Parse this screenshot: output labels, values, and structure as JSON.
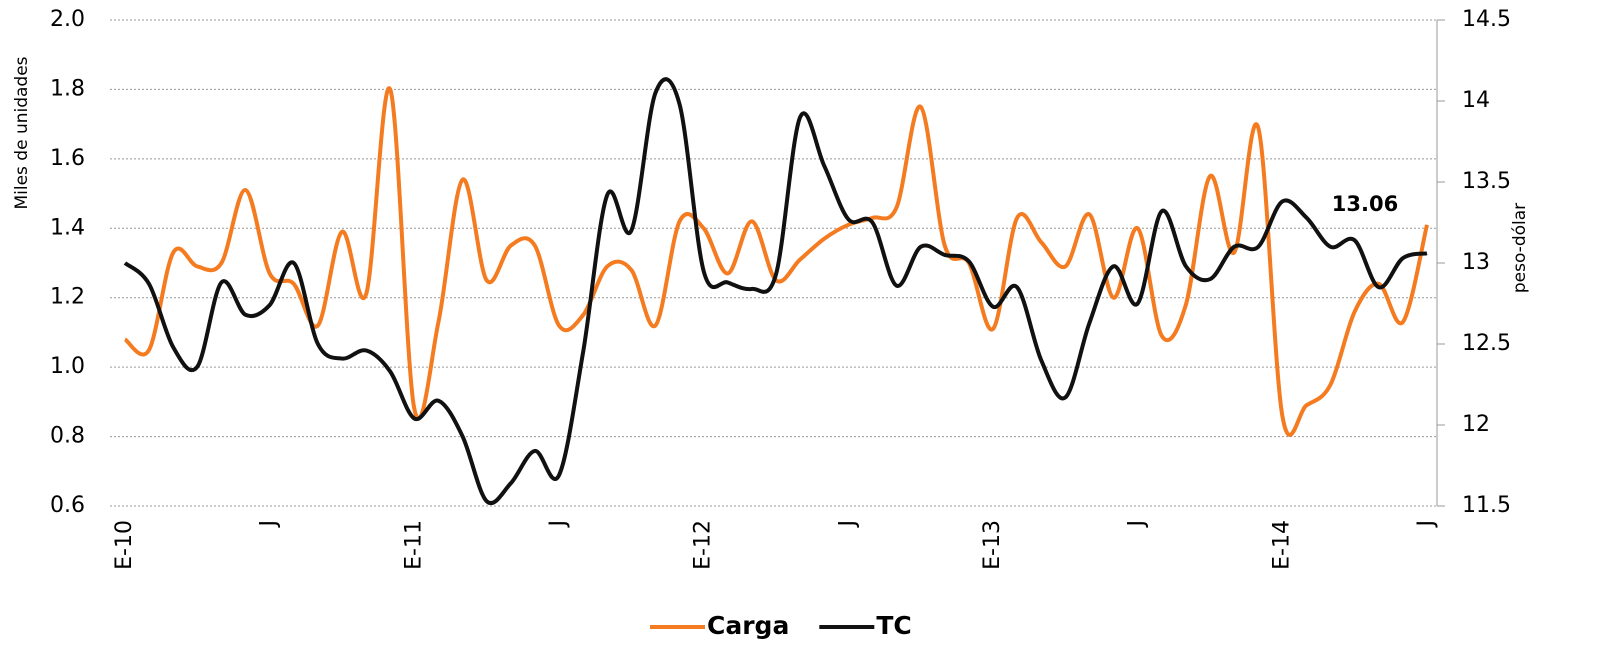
{
  "chart_data": {
    "type": "line",
    "y_label": "Miles de unidades",
    "y2_label": "peso-dólar",
    "categories": [
      "E-10",
      null,
      null,
      null,
      null,
      null,
      "J",
      null,
      null,
      null,
      null,
      null,
      "E-11",
      null,
      null,
      null,
      null,
      null,
      "J",
      null,
      null,
      null,
      null,
      null,
      "E-12",
      null,
      null,
      null,
      null,
      null,
      "J",
      null,
      null,
      null,
      null,
      null,
      "E-13",
      null,
      null,
      null,
      null,
      null,
      "J",
      null,
      null,
      null,
      null,
      null,
      "E-14",
      null,
      null,
      null,
      null,
      null,
      "J"
    ],
    "series": [
      {
        "name": "Carga",
        "color": "#f47b20",
        "values": [
          1.08,
          1.05,
          1.33,
          1.29,
          1.3,
          1.51,
          1.27,
          1.24,
          1.12,
          1.39,
          1.21,
          1.8,
          0.88,
          1.13,
          1.54,
          1.25,
          1.35,
          1.35,
          1.12,
          1.15,
          1.29,
          1.28,
          1.12,
          1.42,
          1.4,
          1.27,
          1.42,
          1.25,
          1.31,
          1.37,
          1.41,
          1.43,
          1.46,
          1.75,
          1.35,
          1.3,
          1.11,
          1.43,
          1.36,
          1.29,
          1.44,
          1.2,
          1.4,
          1.09,
          1.18,
          1.55,
          1.33,
          1.69,
          0.86,
          0.89,
          0.95,
          1.16,
          1.24,
          1.13,
          1.41
        ]
      },
      {
        "name": "TC",
        "color": "#111111",
        "axis": "y2",
        "values": [
          13.0,
          12.87,
          12.48,
          12.36,
          12.88,
          12.68,
          12.74,
          13.0,
          12.5,
          12.41,
          12.46,
          12.33,
          12.04,
          12.15,
          11.93,
          11.53,
          11.64,
          11.84,
          11.69,
          12.45,
          13.42,
          13.2,
          14.05,
          13.98,
          12.95,
          12.88,
          12.84,
          12.93,
          13.9,
          13.6,
          13.27,
          13.25,
          12.86,
          13.1,
          13.05,
          13.01,
          12.73,
          12.85,
          12.4,
          12.17,
          12.63,
          12.98,
          12.75,
          13.32,
          12.98,
          12.9,
          13.1,
          13.1,
          13.38,
          13.28,
          13.1,
          13.14,
          12.85,
          13.03,
          13.06
        ]
      }
    ],
    "ylim": [
      0.6,
      2.0
    ],
    "yticks": [
      0.6,
      0.8,
      {
        "value": 1,
        "label": "1.0"
      },
      1.2,
      1.4,
      1.6,
      1.8,
      {
        "value": 2,
        "label": "2.0"
      }
    ],
    "y2lim": [
      11.5,
      14.5
    ],
    "y2ticks": [
      11.5,
      12,
      12.5,
      13,
      13.5,
      14,
      14.5
    ],
    "grid": true,
    "legend": "bottom"
  }
}
